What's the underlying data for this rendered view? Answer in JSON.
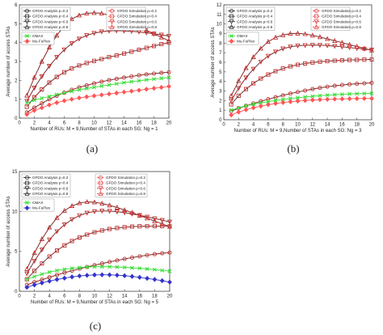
{
  "figure": {
    "captions": [
      "(a)",
      "(b)",
      "(c)"
    ]
  },
  "chart_data": [
    {
      "type": "line",
      "panel": "a",
      "xlabel": "Number of RUs: M = 9,Number of STAs in each SG: Ng = 1",
      "ylabel": "Average number of access STAs",
      "xlim": [
        0,
        20
      ],
      "ylim": [
        0,
        6
      ],
      "xticks": [
        "0",
        "2",
        "4",
        "6",
        "8",
        "10",
        "12",
        "14",
        "16",
        "18",
        "20"
      ],
      "yticks": [
        "0",
        "1",
        "2",
        "3",
        "4",
        "5",
        "6"
      ],
      "grid": false,
      "legend_placement": "top-left",
      "x": [
        1,
        2,
        3,
        4,
        5,
        6,
        7,
        8,
        9,
        10,
        11,
        12,
        13,
        14,
        15,
        16,
        17,
        18,
        19,
        20
      ],
      "series": [
        {
          "name": "GFDO Analysis p=0.2",
          "color": "#222222",
          "marker": "circle",
          "style": "solid",
          "values": [
            0.3,
            0.55,
            0.78,
            1.0,
            1.18,
            1.35,
            1.5,
            1.63,
            1.74,
            1.84,
            1.93,
            2.01,
            2.08,
            2.15,
            2.21,
            2.27,
            2.32,
            2.36,
            2.4,
            2.43
          ]
        },
        {
          "name": "GFDO Analysis p=0.4",
          "color": "#222222",
          "marker": "square",
          "style": "solid",
          "values": [
            0.6,
            1.1,
            1.52,
            1.88,
            2.18,
            2.43,
            2.63,
            2.79,
            2.92,
            3.03,
            3.13,
            3.23,
            3.32,
            3.42,
            3.52,
            3.62,
            3.72,
            3.82,
            3.92,
            4.0
          ]
        },
        {
          "name": "GFDO Analysis p=0.6",
          "color": "#222222",
          "marker": "triangle-down",
          "style": "solid",
          "values": [
            0.9,
            1.6,
            2.2,
            2.75,
            3.22,
            3.62,
            3.95,
            4.2,
            4.38,
            4.5,
            4.58,
            4.62,
            4.63,
            4.62,
            4.6,
            4.57,
            4.52,
            4.47,
            4.41,
            4.35
          ]
        },
        {
          "name": "GFDO Analysis p=0.8",
          "color": "#222222",
          "marker": "triangle-up",
          "style": "solid",
          "values": [
            1.2,
            2.15,
            3.0,
            3.75,
            4.38,
            4.9,
            5.25,
            5.45,
            5.55,
            5.58,
            5.55,
            5.45,
            5.3,
            5.15,
            5.0,
            4.83,
            4.65,
            4.47,
            4.28,
            4.1
          ]
        },
        {
          "name": "GFDO Simulation p=0.2",
          "color": "#e03030",
          "marker": "circle",
          "style": "dashed",
          "values": [
            0.31,
            0.56,
            0.79,
            1.0,
            1.19,
            1.35,
            1.5,
            1.63,
            1.74,
            1.84,
            1.93,
            2.01,
            2.08,
            2.15,
            2.21,
            2.27,
            2.32,
            2.36,
            2.4,
            2.43
          ]
        },
        {
          "name": "GFDO Simulation p=0.4",
          "color": "#e03030",
          "marker": "square",
          "style": "dashed",
          "values": [
            0.61,
            1.11,
            1.53,
            1.89,
            2.19,
            2.43,
            2.63,
            2.79,
            2.92,
            3.03,
            3.13,
            3.23,
            3.32,
            3.42,
            3.52,
            3.62,
            3.72,
            3.82,
            3.92,
            4.0
          ]
        },
        {
          "name": "GFDO Simulation p=0.6",
          "color": "#e03030",
          "marker": "triangle-down",
          "style": "dashed",
          "values": [
            0.91,
            1.61,
            2.21,
            2.76,
            3.23,
            3.63,
            3.96,
            4.21,
            4.39,
            4.51,
            4.58,
            4.62,
            4.63,
            4.62,
            4.6,
            4.57,
            4.52,
            4.47,
            4.41,
            4.35
          ]
        },
        {
          "name": "GFDO Simulation p=0.8",
          "color": "#e03030",
          "marker": "triangle-up",
          "style": "dashed",
          "values": [
            1.21,
            2.16,
            3.01,
            3.76,
            4.39,
            4.9,
            5.25,
            5.45,
            5.55,
            5.58,
            5.55,
            5.45,
            5.3,
            5.15,
            5.0,
            4.83,
            4.65,
            4.47,
            4.28,
            4.1
          ]
        },
        {
          "name": "OMAX",
          "color": "#33dd33",
          "marker": "x",
          "style": "solid",
          "values": [
            0.8,
            0.95,
            1.05,
            1.15,
            1.25,
            1.33,
            1.42,
            1.5,
            1.57,
            1.63,
            1.7,
            1.76,
            1.82,
            1.88,
            1.93,
            1.98,
            2.03,
            2.07,
            2.11,
            2.15
          ]
        },
        {
          "name": "Mu-FuPlex",
          "color": "#ff5555",
          "marker": "diamond",
          "style": "solid",
          "values": [
            0.2,
            0.4,
            0.55,
            0.7,
            0.82,
            0.92,
            1.0,
            1.07,
            1.13,
            1.18,
            1.23,
            1.28,
            1.33,
            1.38,
            1.43,
            1.48,
            1.53,
            1.58,
            1.63,
            1.68
          ]
        }
      ]
    },
    {
      "type": "line",
      "panel": "b",
      "xlabel": "Number of RUs: M = 9,Number of STAs in each SG: Ng = 3",
      "ylabel": "Average number of access STAs",
      "xlim": [
        0,
        20
      ],
      "ylim": [
        0,
        12
      ],
      "xticks": [
        "0",
        "2",
        "4",
        "6",
        "8",
        "10",
        "12",
        "14",
        "16",
        "18",
        "20"
      ],
      "yticks": [
        "0",
        "1",
        "2",
        "3",
        "4",
        "5",
        "6",
        "7",
        "8",
        "9",
        "10",
        "11",
        "12"
      ],
      "grid": false,
      "legend_placement": "top-left",
      "x": [
        1,
        2,
        3,
        4,
        5,
        6,
        7,
        8,
        9,
        10,
        11,
        12,
        13,
        14,
        15,
        16,
        17,
        18,
        19,
        20
      ],
      "series": [
        {
          "name": "GFDO Analysis p=0.2",
          "color": "#222222",
          "marker": "circle",
          "style": "solid",
          "values": [
            0.9,
            1.2,
            1.45,
            1.7,
            1.93,
            2.15,
            2.35,
            2.55,
            2.73,
            2.9,
            3.05,
            3.2,
            3.33,
            3.45,
            3.55,
            3.63,
            3.7,
            3.76,
            3.81,
            3.85
          ]
        },
        {
          "name": "GFDO Analysis p=0.4",
          "color": "#222222",
          "marker": "square",
          "style": "solid",
          "values": [
            1.6,
            2.5,
            3.2,
            3.8,
            4.3,
            4.72,
            5.07,
            5.35,
            5.57,
            5.75,
            5.88,
            5.98,
            6.06,
            6.12,
            6.17,
            6.21,
            6.24,
            6.26,
            6.28,
            6.3
          ]
        },
        {
          "name": "GFDO Analysis p=0.6",
          "color": "#222222",
          "marker": "triangle-down",
          "style": "solid",
          "values": [
            2.0,
            3.3,
            4.4,
            5.3,
            6.05,
            6.65,
            7.1,
            7.42,
            7.62,
            7.73,
            7.78,
            7.8,
            7.79,
            7.75,
            7.69,
            7.62,
            7.54,
            7.46,
            7.38,
            7.3
          ]
        },
        {
          "name": "GFDO Analysis p=0.8",
          "color": "#222222",
          "marker": "triangle-up",
          "style": "solid",
          "values": [
            2.5,
            4.05,
            5.4,
            6.55,
            7.45,
            8.15,
            8.6,
            8.85,
            9.0,
            9.02,
            8.95,
            8.82,
            8.65,
            8.45,
            8.25,
            8.05,
            7.85,
            7.65,
            7.45,
            7.25
          ]
        },
        {
          "name": "GFDO Simulation p=0.2",
          "color": "#e03030",
          "marker": "circle",
          "style": "dashed",
          "values": [
            0.91,
            1.21,
            1.46,
            1.71,
            1.94,
            2.15,
            2.35,
            2.55,
            2.73,
            2.9,
            3.05,
            3.2,
            3.33,
            3.45,
            3.55,
            3.63,
            3.7,
            3.76,
            3.81,
            3.85
          ]
        },
        {
          "name": "GFDO Simulation p=0.4",
          "color": "#e03030",
          "marker": "square",
          "style": "dashed",
          "values": [
            1.61,
            2.51,
            3.21,
            3.81,
            4.31,
            4.72,
            5.07,
            5.35,
            5.57,
            5.75,
            5.88,
            5.98,
            6.06,
            6.12,
            6.17,
            6.21,
            6.24,
            6.26,
            6.28,
            6.3
          ]
        },
        {
          "name": "GFDO Simulation p=0.6",
          "color": "#e03030",
          "marker": "triangle-down",
          "style": "dashed",
          "values": [
            2.01,
            3.31,
            4.41,
            5.31,
            6.06,
            6.66,
            7.11,
            7.43,
            7.62,
            7.73,
            7.78,
            7.8,
            7.79,
            7.75,
            7.69,
            7.62,
            7.54,
            7.46,
            7.38,
            7.3
          ]
        },
        {
          "name": "GFDO Simulation p=0.8",
          "color": "#e03030",
          "marker": "triangle-up",
          "style": "dashed",
          "values": [
            2.51,
            4.06,
            5.41,
            6.56,
            7.46,
            8.16,
            8.6,
            8.85,
            9.0,
            9.02,
            8.95,
            8.82,
            8.65,
            8.45,
            8.25,
            8.05,
            7.85,
            7.65,
            7.45,
            7.25
          ]
        },
        {
          "name": "OMAX",
          "color": "#33dd33",
          "marker": "x",
          "style": "solid",
          "values": [
            1.0,
            1.25,
            1.45,
            1.62,
            1.77,
            1.9,
            2.02,
            2.12,
            2.22,
            2.3,
            2.38,
            2.45,
            2.52,
            2.57,
            2.62,
            2.66,
            2.7,
            2.72,
            2.74,
            2.75
          ]
        },
        {
          "name": "Mu-FuPlex",
          "color": "#ff5555",
          "marker": "diamond",
          "style": "solid",
          "values": [
            0.5,
            0.8,
            1.05,
            1.25,
            1.42,
            1.57,
            1.7,
            1.8,
            1.88,
            1.95,
            2.01,
            2.06,
            2.1,
            2.13,
            2.16,
            2.18,
            2.2,
            2.21,
            2.22,
            2.22
          ]
        }
      ]
    },
    {
      "type": "line",
      "panel": "c",
      "xlabel": "Number of RUs: M = 9,Number of STAs in each SG: Ng = 5",
      "ylabel": "Average number of access STAs",
      "xlim": [
        0,
        20
      ],
      "ylim": [
        0,
        15
      ],
      "xticks": [
        "0",
        "2",
        "4",
        "6",
        "8",
        "10",
        "12",
        "14",
        "16",
        "18",
        "20"
      ],
      "yticks": [
        "0",
        "5",
        "10",
        "15"
      ],
      "grid": false,
      "legend_placement": "top-left",
      "x": [
        1,
        2,
        3,
        4,
        5,
        6,
        7,
        8,
        9,
        10,
        11,
        12,
        13,
        14,
        15,
        16,
        17,
        18,
        19,
        20
      ],
      "series": [
        {
          "name": "GFDO Analysis p=0.2",
          "color": "#222222",
          "marker": "circle",
          "style": "solid",
          "values": [
            0.8,
            1.15,
            1.45,
            1.75,
            2.05,
            2.32,
            2.58,
            2.82,
            3.05,
            3.27,
            3.48,
            3.68,
            3.87,
            4.05,
            4.22,
            4.38,
            4.52,
            4.65,
            4.76,
            4.85
          ]
        },
        {
          "name": "GFDO Analysis p=0.4",
          "color": "#222222",
          "marker": "square",
          "style": "solid",
          "values": [
            1.5,
            2.55,
            3.5,
            4.35,
            5.1,
            5.75,
            6.3,
            6.75,
            7.1,
            7.4,
            7.62,
            7.8,
            7.93,
            8.03,
            8.1,
            8.14,
            8.16,
            8.17,
            8.17,
            8.16
          ]
        },
        {
          "name": "GFDO Analysis p=0.6",
          "color": "#222222",
          "marker": "triangle-down",
          "style": "solid",
          "values": [
            2.2,
            3.8,
            5.2,
            6.45,
            7.5,
            8.35,
            9.0,
            9.5,
            9.82,
            10.0,
            10.07,
            10.05,
            9.97,
            9.85,
            9.7,
            9.52,
            9.33,
            9.12,
            8.91,
            8.7
          ]
        },
        {
          "name": "GFDO Analysis p=0.8",
          "color": "#222222",
          "marker": "triangle-up",
          "style": "solid",
          "values": [
            2.8,
            4.8,
            6.55,
            8.0,
            9.2,
            10.1,
            10.7,
            11.05,
            11.2,
            11.15,
            11.0,
            10.78,
            10.5,
            10.18,
            9.85,
            9.5,
            9.15,
            8.8,
            8.45,
            8.1
          ]
        },
        {
          "name": "GFDO Simulation p=0.2",
          "color": "#e03030",
          "marker": "circle",
          "style": "dashed",
          "values": [
            0.81,
            1.16,
            1.46,
            1.76,
            2.06,
            2.33,
            2.58,
            2.82,
            3.05,
            3.27,
            3.48,
            3.68,
            3.87,
            4.05,
            4.22,
            4.38,
            4.52,
            4.65,
            4.76,
            4.85
          ]
        },
        {
          "name": "GFDO Simulation p=0.4",
          "color": "#e03030",
          "marker": "square",
          "style": "dashed",
          "values": [
            1.51,
            2.56,
            3.51,
            4.36,
            5.11,
            5.76,
            6.3,
            6.75,
            7.1,
            7.4,
            7.62,
            7.8,
            7.93,
            8.03,
            8.1,
            8.14,
            8.16,
            8.17,
            8.17,
            8.16
          ]
        },
        {
          "name": "GFDO Simulation p=0.6",
          "color": "#e03030",
          "marker": "triangle-down",
          "style": "dashed",
          "values": [
            2.21,
            3.81,
            5.21,
            6.46,
            7.51,
            8.36,
            9.0,
            9.5,
            9.82,
            10.0,
            10.07,
            10.05,
            9.97,
            9.85,
            9.7,
            9.52,
            9.33,
            9.12,
            8.91,
            8.7
          ]
        },
        {
          "name": "GFDO Simulation p=0.8",
          "color": "#e03030",
          "marker": "triangle-up",
          "style": "dashed",
          "values": [
            2.81,
            4.81,
            6.56,
            8.01,
            9.21,
            10.1,
            10.7,
            11.05,
            11.2,
            11.15,
            11.0,
            10.78,
            10.5,
            10.18,
            9.85,
            9.5,
            9.15,
            8.8,
            8.45,
            8.1
          ]
        },
        {
          "name": "OMAX",
          "color": "#33dd33",
          "marker": "x",
          "style": "solid",
          "values": [
            1.5,
            1.85,
            2.15,
            2.4,
            2.6,
            2.76,
            2.88,
            2.97,
            3.03,
            3.07,
            3.08,
            3.07,
            3.04,
            3.0,
            2.94,
            2.88,
            2.8,
            2.72,
            2.62,
            2.52
          ]
        },
        {
          "name": "Mu-FuPlex",
          "color": "#3333cc",
          "marker": "diamond",
          "style": "solid",
          "values": [
            0.5,
            0.8,
            1.05,
            1.28,
            1.48,
            1.65,
            1.8,
            1.92,
            2.0,
            2.05,
            2.07,
            2.06,
            2.02,
            1.95,
            1.86,
            1.75,
            1.62,
            1.48,
            1.33,
            1.15
          ]
        }
      ]
    }
  ]
}
